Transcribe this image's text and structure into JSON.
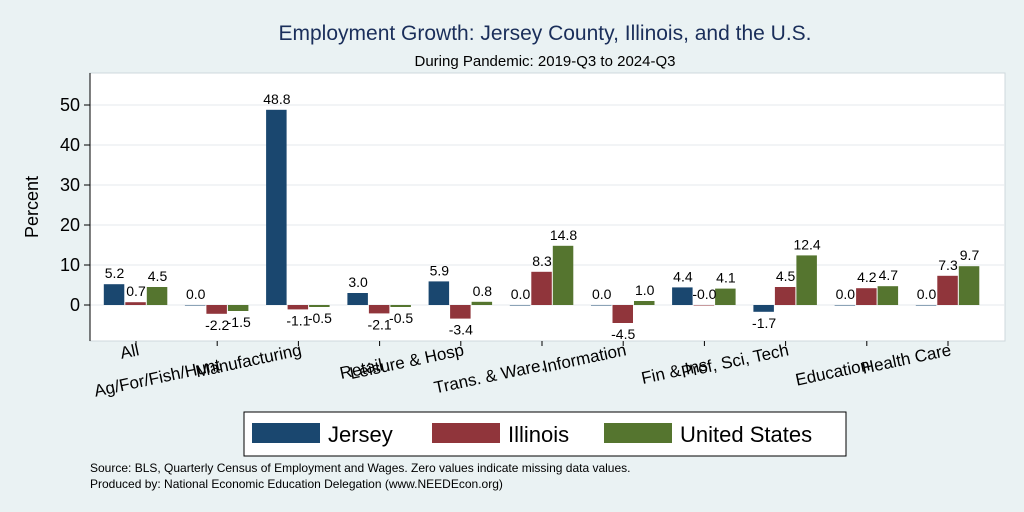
{
  "chart_data": {
    "type": "bar",
    "title": "Employment Growth: Jersey County, Illinois, and the U.S.",
    "subtitle": "During Pandemic: 2019-Q3 to 2024-Q3",
    "ylabel": "Percent",
    "xlabel": "",
    "ylim": [
      -9,
      58
    ],
    "yticks": [
      0,
      10,
      20,
      30,
      40,
      50
    ],
    "grid": true,
    "categories": [
      "All",
      "Ag/For/Fish/Hunt",
      "Manufacturing",
      "Retail",
      "Leisure & Hosp",
      "Trans. & Ware.",
      "Information",
      "Fin & Ins",
      "Prof, Sci, Tech",
      "Education",
      "Health Care"
    ],
    "series": [
      {
        "name": "Jersey",
        "color": "#1a476f",
        "values": [
          5.2,
          0.0,
          48.8,
          3.0,
          5.9,
          0.0,
          0.0,
          4.4,
          -1.7,
          0.0,
          0.0
        ]
      },
      {
        "name": "Illinois",
        "color": "#90353b",
        "values": [
          0.7,
          -2.2,
          -1.1,
          -2.1,
          -3.4,
          8.3,
          -4.5,
          -0.0,
          4.5,
          4.2,
          7.3
        ]
      },
      {
        "name": "United States",
        "color": "#55752f",
        "values": [
          4.5,
          -1.5,
          -0.5,
          -0.5,
          0.8,
          14.8,
          1.0,
          4.1,
          12.4,
          4.7,
          9.7
        ]
      }
    ],
    "legend_position": "bottom",
    "notes": [
      "Source: BLS, Quarterly Census of Employment and Wages. Zero values indicate missing data values.",
      "Produced by: National Economic Education Delegation (www.NEEDEcon.org)"
    ]
  }
}
